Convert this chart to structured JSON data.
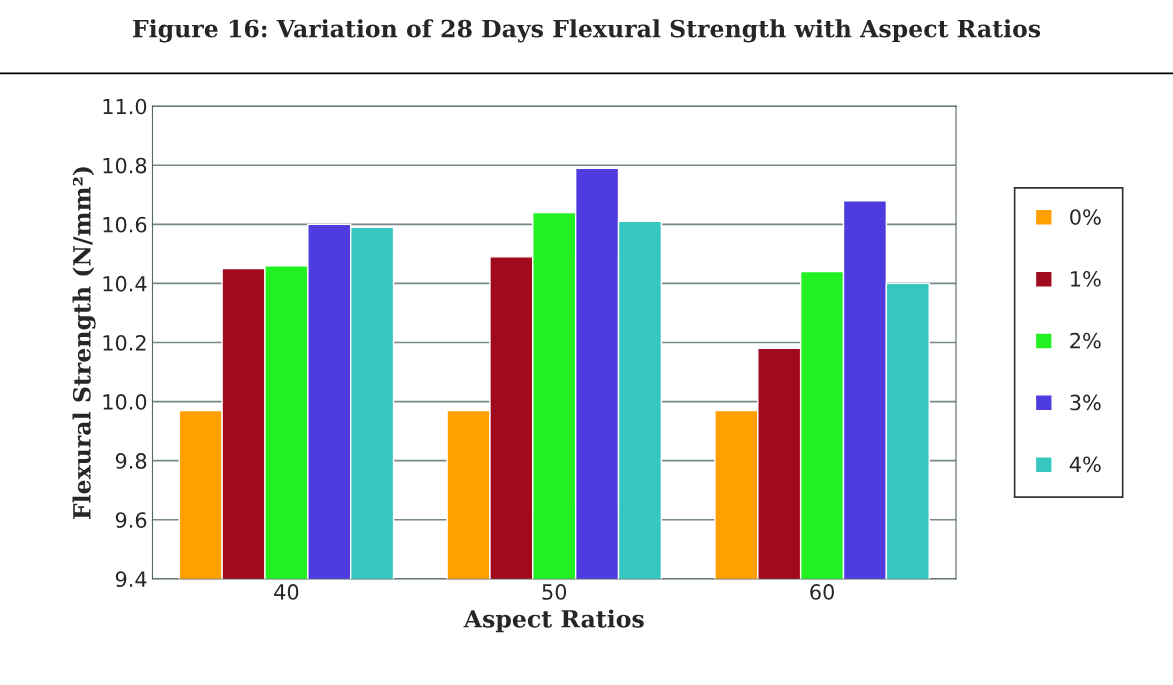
{
  "chart_data": {
    "type": "bar",
    "title": "Figure 16: Variation of 28 Days Flexural Strength with Aspect Ratios",
    "xlabel": "Aspect Ratios",
    "ylabel": "Flexural Strength (N/mm²)",
    "categories": [
      "40",
      "50",
      "60"
    ],
    "series": [
      {
        "name": "0%",
        "color": "#ff9f00",
        "values": [
          9.97,
          9.97,
          9.97
        ]
      },
      {
        "name": "1%",
        "color": "#a00a1e",
        "values": [
          10.45,
          10.49,
          10.18
        ]
      },
      {
        "name": "2%",
        "color": "#22f022",
        "values": [
          10.46,
          10.64,
          10.44
        ]
      },
      {
        "name": "3%",
        "color": "#4f3ce0",
        "values": [
          10.6,
          10.79,
          10.68
        ]
      },
      {
        "name": "4%",
        "color": "#36c8c0",
        "values": [
          10.59,
          10.61,
          10.4
        ]
      }
    ],
    "ylim": [
      9.4,
      11.0
    ],
    "yticks": [
      {
        "value": 9.4,
        "label": "9.4"
      },
      {
        "value": 9.6,
        "label": "9.6"
      },
      {
        "value": 9.8,
        "label": "9.8"
      },
      {
        "value": 10.0,
        "label": "10.0"
      },
      {
        "value": 10.2,
        "label": "10.2"
      },
      {
        "value": 10.4,
        "label": "10.4"
      },
      {
        "value": 10.6,
        "label": "10.6"
      },
      {
        "value": 10.8,
        "label": "10.8"
      },
      {
        "value": 11.0,
        "label": "11.0"
      }
    ],
    "grid": "y",
    "legend": "right"
  }
}
